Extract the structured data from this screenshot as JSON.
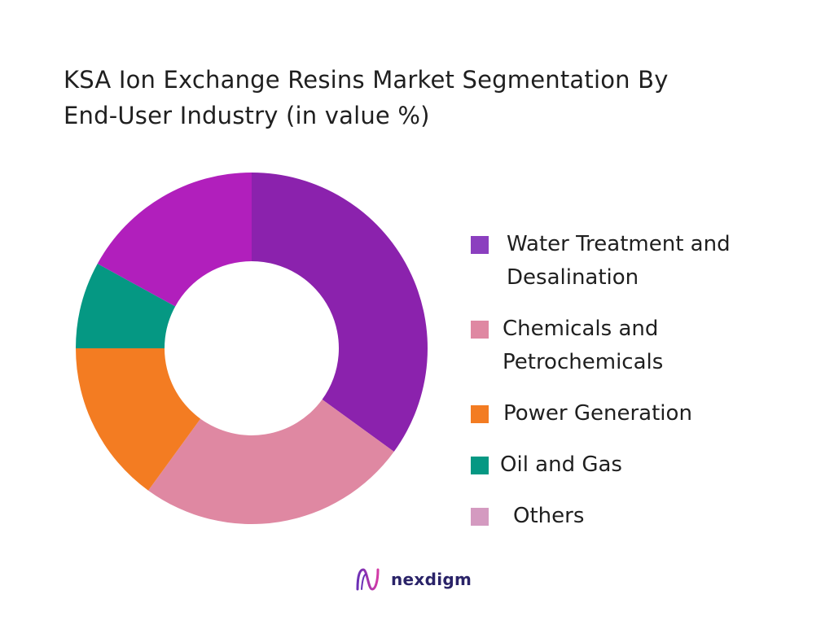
{
  "title_line1": "KSA Ion Exchange Resins Market Segmentation By",
  "title_line2": "End-User Industry (in value %)",
  "chart_data": {
    "type": "pie",
    "variant": "donut",
    "title": "KSA Ion Exchange Resins Market Segmentation By End-User Industry (in value %)",
    "legend_position": "right",
    "slices": [
      {
        "label": "Water Treatment and Desalination",
        "value": 35,
        "color": "#8b22ad"
      },
      {
        "label": "Chemicals and Petrochemicals",
        "value": 25,
        "color": "#df88a2"
      },
      {
        "label": "Power Generation",
        "value": 15,
        "color": "#f37c22"
      },
      {
        "label": "Oil and Gas",
        "value": 8,
        "color": "#059883"
      },
      {
        "label": "Others",
        "value": 17,
        "color": "#b11fbc"
      }
    ]
  },
  "legend": [
    {
      "label_line1": "Water Treatment and",
      "label_line2": "Desalination",
      "color": "#8b3fbf"
    },
    {
      "label_line1": "Chemicals and",
      "label_line2": "Petrochemicals",
      "color": "#df88a2"
    },
    {
      "label_line1": "Power Generation",
      "label_line2": "",
      "color": "#f37c22"
    },
    {
      "label_line1": "Oil and Gas",
      "label_line2": "",
      "color": "#059883"
    },
    {
      "label_line1": "Others",
      "label_line2": "",
      "color": "#d49ac0"
    }
  ],
  "brand": {
    "name": "nexdigm",
    "icon": "nexdigm-logo-icon"
  }
}
